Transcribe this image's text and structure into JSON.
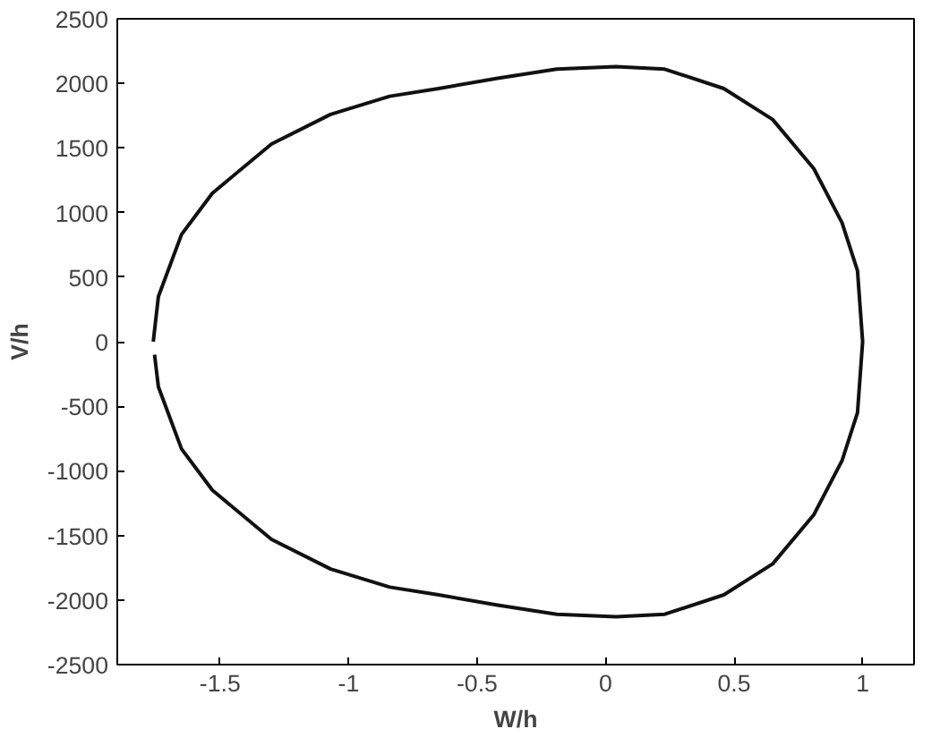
{
  "chart_data": {
    "type": "line",
    "xlabel": "W/h",
    "ylabel": "V/h",
    "xlim": [
      -1.9,
      1.2
    ],
    "ylim": [
      -2500,
      2500
    ],
    "xticks": [
      -1.5,
      -1,
      -0.5,
      0,
      0.5,
      1
    ],
    "yticks": [
      -2500,
      -2000,
      -1500,
      -1000,
      -500,
      0,
      500,
      1000,
      1500,
      2000,
      2500
    ],
    "grid": false,
    "marker": "none",
    "line_style": "solid",
    "series": [
      {
        "color": "#111111",
        "x": [
          -1.76,
          -1.74,
          -1.65,
          -1.53,
          -1.3,
          -1.07,
          -0.84,
          -0.65,
          -0.42,
          -0.19,
          0.04,
          0.23,
          0.46,
          0.65,
          0.81,
          0.92,
          0.98,
          1.0,
          0.98,
          0.92,
          0.81,
          0.65,
          0.46,
          0.23,
          0.04,
          -0.19,
          -0.42,
          -0.65,
          -0.84,
          -1.07,
          -1.3,
          -1.53,
          -1.65,
          -1.74,
          -1.755
        ],
        "values": [
          0,
          350,
          830,
          1150,
          1530,
          1760,
          1900,
          1960,
          2040,
          2110,
          2130,
          2110,
          1960,
          1720,
          1340,
          920,
          550,
          0,
          -550,
          -920,
          -1340,
          -1720,
          -1960,
          -2110,
          -2130,
          -2110,
          -2040,
          -1960,
          -1900,
          -1760,
          -1530,
          -1150,
          -830,
          -350,
          -100
        ]
      }
    ]
  }
}
